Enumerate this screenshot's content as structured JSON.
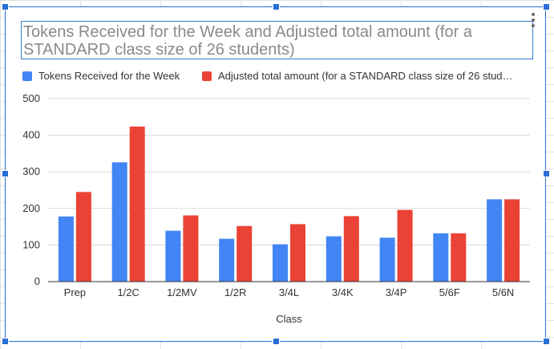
{
  "sheet": {
    "background": "spreadsheet grid"
  },
  "chart": {
    "title": "Tokens Received for the Week and Adjusted total amount (for a STANDARD class size of 26 students)",
    "menu_icon": "more-vert-icon"
  },
  "chart_data": {
    "type": "bar",
    "title": "Tokens Received for the Week and Adjusted total amount (for a STANDARD class size of 26 students)",
    "xlabel": "Class",
    "ylabel": "",
    "categories": [
      "Prep",
      "1/2C",
      "1/2MV",
      "1/2R",
      "3/4L",
      "3/4K",
      "3/4P",
      "5/6F",
      "5/6N"
    ],
    "series": [
      {
        "name": "Tokens Received for the Week",
        "legend_label": "Tokens Received for the Week",
        "color": "#4285f4",
        "values": [
          178,
          326,
          139,
          117,
          102,
          124,
          120,
          132,
          225
        ]
      },
      {
        "name": "Adjusted total amount (for a STANDARD class size of 26 students)",
        "legend_label": "Adjusted total amount (for a STANDARD class size of 26 stud…",
        "color": "#ea4335",
        "values": [
          245,
          424,
          181,
          152,
          157,
          179,
          196,
          132,
          225
        ]
      }
    ],
    "yticks": [
      "0",
      "100",
      "200",
      "300",
      "400",
      "500"
    ],
    "ylim": [
      0,
      500
    ],
    "grid": true,
    "legend_position": "top-left"
  },
  "colors": {
    "selection_border": "#2a6fd6",
    "gridline": "#d9d9d9",
    "axis_line": "#333333",
    "series_1": "#4285f4",
    "series_2": "#ea4335"
  }
}
